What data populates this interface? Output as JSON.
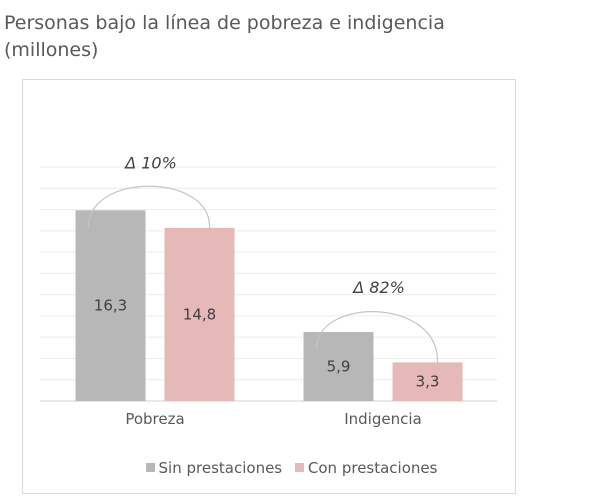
{
  "title_line1": "Personas bajo la línea de pobreza e indigencia",
  "title_line2": "(millones)",
  "colors": {
    "sin": "#b7b7b7",
    "con": "#e6b8b8",
    "grid": "#ececec",
    "axis": "#d0d0d0",
    "arc": "#c4c4c4"
  },
  "chart_data": {
    "type": "bar",
    "categories": [
      "Pobreza",
      "Indigencia"
    ],
    "series": [
      {
        "name": "Sin prestaciones",
        "values": [
          16.3,
          5.9
        ],
        "labels": [
          "16,3",
          "5,9"
        ]
      },
      {
        "name": "Con prestaciones",
        "values": [
          14.8,
          3.3
        ],
        "labels": [
          "14,8",
          "3,3"
        ]
      }
    ],
    "annotations": [
      "Δ 10%",
      "Δ 82%"
    ],
    "ylim": [
      0,
      20
    ],
    "legend_position": "bottom",
    "grid": true
  }
}
